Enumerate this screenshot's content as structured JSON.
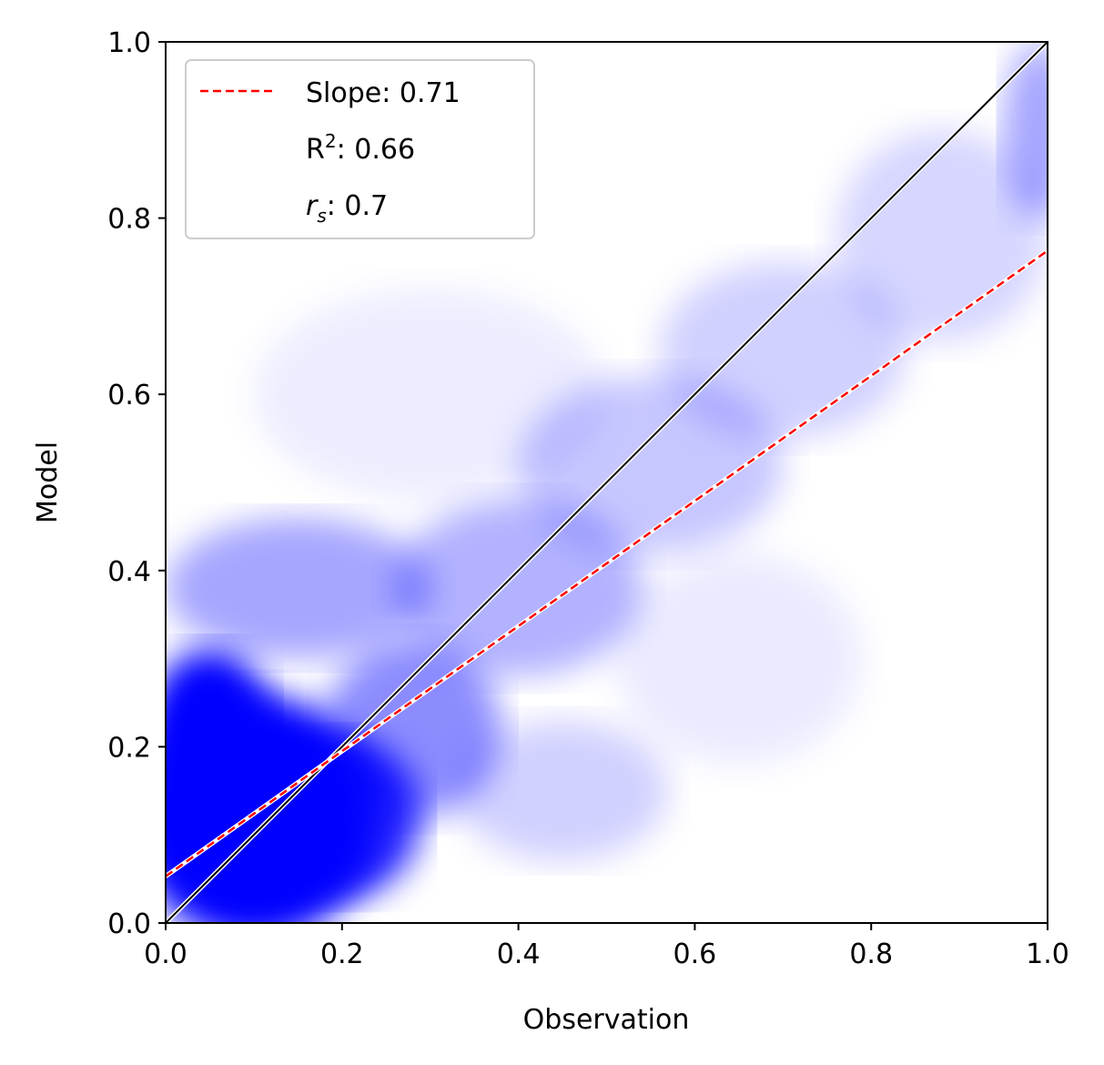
{
  "chart_data": {
    "type": "scatter",
    "xlabel": "Observation",
    "ylabel": "Model",
    "xlim": [
      0.0,
      1.0
    ],
    "ylim": [
      0.0,
      1.0
    ],
    "x_ticks": [
      "0.0",
      "0.2",
      "0.4",
      "0.6",
      "0.8",
      "1.0"
    ],
    "y_ticks": [
      "0.0",
      "0.2",
      "0.4",
      "0.6",
      "0.8",
      "1.0"
    ],
    "grid": false,
    "legend_placement": "top-left",
    "legend": {
      "slope_label": "Slope: 0.71",
      "r2_prefix": "R",
      "r2_sup": "2",
      "r2_value": ": 0.66",
      "rs_symbol": "r",
      "rs_sub": "s",
      "rs_value": ": 0.7"
    },
    "point_color": "#0000ff",
    "fit_line": {
      "intercept": 0.053,
      "slope": 0.71,
      "color": "#ff0000",
      "style": "dashed"
    },
    "identity_line": {
      "x": [
        0.0,
        1.0
      ],
      "y": [
        0.0,
        1.0
      ],
      "color": "#000000"
    },
    "stats": {
      "slope": 0.71,
      "r2": 0.66,
      "rs": 0.7
    }
  }
}
